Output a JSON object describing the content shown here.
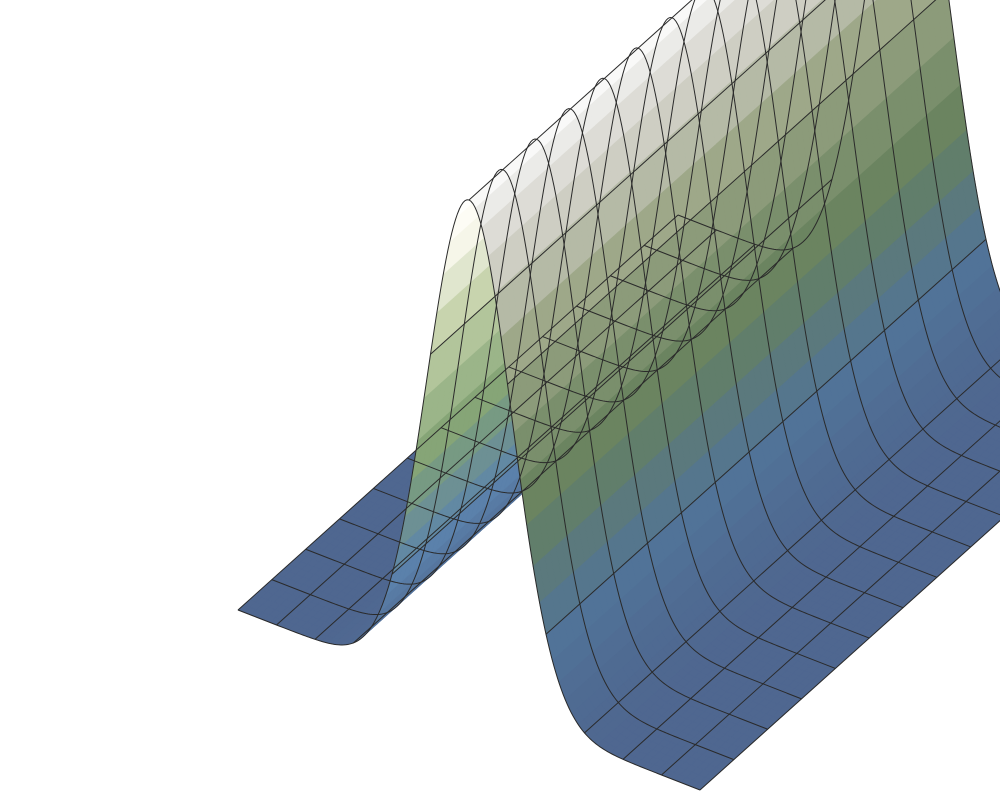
{
  "chart_data": {
    "type": "surface",
    "title": "",
    "xlabel": "",
    "ylabel": "",
    "zlabel": "",
    "function": "gaussian-ridge",
    "x_range": [
      -3,
      3
    ],
    "y_range": [
      -3,
      3
    ],
    "z_range": [
      0,
      1
    ],
    "grid_lines": {
      "x": 13,
      "y": 14
    },
    "ridge": {
      "center_x": 0,
      "peak_z": 1,
      "sigma": 0.55,
      "orientation": "along-y"
    },
    "axes_visible": false,
    "colormap": [
      {
        "z": 0.0,
        "color": "#4f6790"
      },
      {
        "z": 0.18,
        "color": "#5b82ab"
      },
      {
        "z": 0.42,
        "color": "#7f9f72"
      },
      {
        "z": 0.7,
        "color": "#c2cfa8"
      },
      {
        "z": 0.88,
        "color": "#f6f5ea"
      },
      {
        "z": 1.0,
        "color": "#ffffff"
      }
    ],
    "grid_color": "#2a2a2a",
    "background": "#ffffff"
  }
}
